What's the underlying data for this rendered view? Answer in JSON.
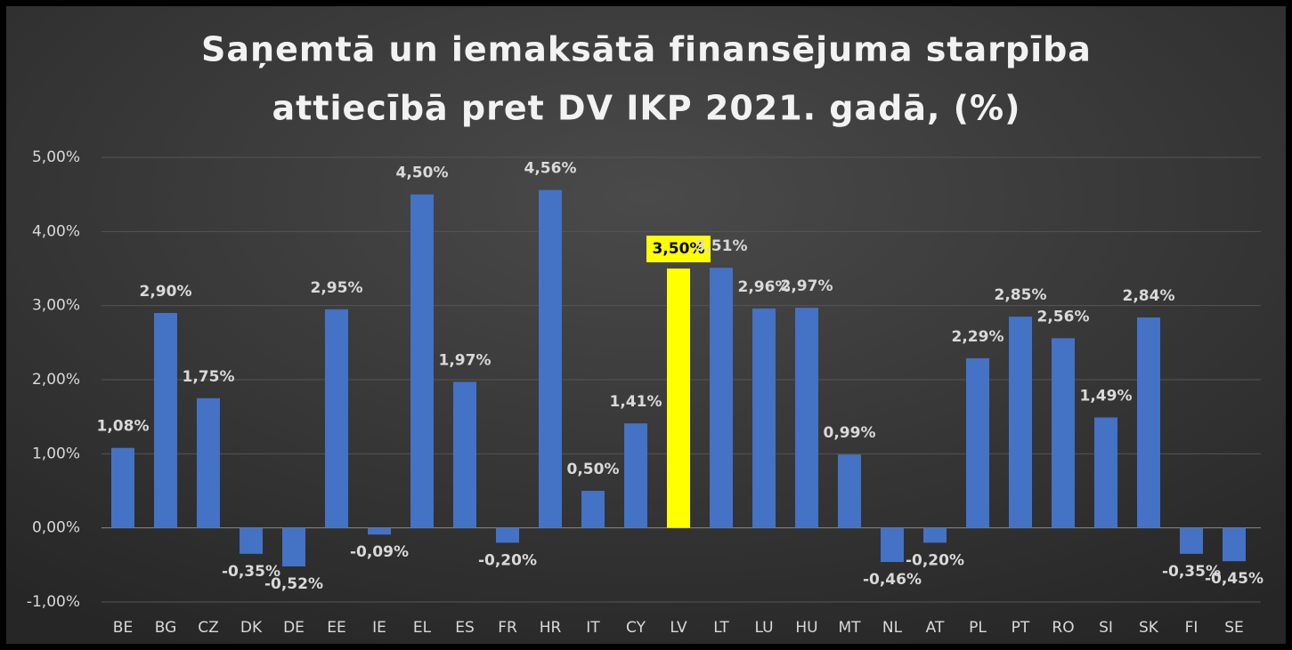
{
  "chart_data": {
    "type": "bar",
    "title": [
      "Saņemtā un iemaksātā finansējuma starpība",
      "attiecībā pret DV IKP 2021. gadā, (%)"
    ],
    "categories": [
      "BE",
      "BG",
      "CZ",
      "DK",
      "DE",
      "EE",
      "IE",
      "EL",
      "ES",
      "FR",
      "HR",
      "IT",
      "CY",
      "LV",
      "LT",
      "LU",
      "HU",
      "MT",
      "NL",
      "AT",
      "PL",
      "PT",
      "RO",
      "SI",
      "SK",
      "FI",
      "SE"
    ],
    "values": [
      1.08,
      2.9,
      1.75,
      -0.35,
      -0.52,
      2.95,
      -0.09,
      4.5,
      1.97,
      -0.2,
      4.56,
      0.5,
      1.41,
      3.5,
      3.51,
      2.96,
      2.97,
      0.99,
      -0.46,
      -0.2,
      2.29,
      2.85,
      2.56,
      1.49,
      2.84,
      -0.35,
      -0.45
    ],
    "value_labels": [
      "1,08%",
      "2,90%",
      "1,75%",
      "-0,35%",
      "-0,52%",
      "2,95%",
      "-0,09%",
      "4,50%",
      "1,97%",
      "-0,20%",
      "4,56%",
      "0,50%",
      "1,41%",
      "3,50%",
      "3,51%",
      "2,96%",
      "2,97%",
      "0,99%",
      "-0,46%",
      "-0,20%",
      "2,29%",
      "2,85%",
      "2,56%",
      "1,49%",
      "2,84%",
      "-0,35%",
      "-0,45%"
    ],
    "color": "#4472c4",
    "colors": [
      "#4472c4",
      "#4472c4",
      "#4472c4",
      "#4472c4",
      "#4472c4",
      "#4472c4",
      "#4472c4",
      "#4472c4",
      "#4472c4",
      "#4472c4",
      "#4472c4",
      "#4472c4",
      "#4472c4",
      "#ffff00",
      "#4472c4",
      "#4472c4",
      "#4472c4",
      "#4472c4",
      "#4472c4",
      "#4472c4",
      "#4472c4",
      "#4472c4",
      "#4472c4",
      "#4472c4",
      "#4472c4",
      "#4472c4",
      "#4472c4"
    ],
    "ylim": [
      -1,
      5
    ],
    "yticks": [
      {
        "value": -1,
        "label": "-1,00%"
      },
      {
        "value": 0,
        "label": "0,00%"
      },
      {
        "value": 1,
        "label": "1,00%"
      },
      {
        "value": 2,
        "label": "2,00%"
      },
      {
        "value": 3,
        "label": "3,00%"
      },
      {
        "value": 4,
        "label": "4,00%"
      },
      {
        "value": 5,
        "label": "5,00%"
      }
    ],
    "grid": true
  }
}
